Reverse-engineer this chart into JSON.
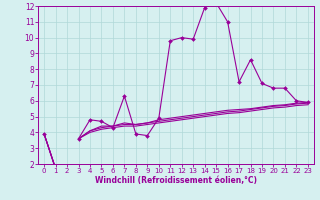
{
  "title": "",
  "xlabel": "Windchill (Refroidissement éolien,°C)",
  "bg_color": "#d6f0f0",
  "line_color": "#990099",
  "grid_color": "#b0d8d8",
  "x_data": [
    0,
    1,
    2,
    3,
    4,
    5,
    6,
    7,
    8,
    9,
    10,
    11,
    12,
    13,
    14,
    15,
    16,
    17,
    18,
    19,
    20,
    21,
    22,
    23
  ],
  "line1": [
    3.9,
    1.7,
    null,
    3.6,
    4.8,
    4.7,
    4.3,
    6.3,
    3.9,
    3.8,
    4.9,
    9.8,
    10.0,
    9.9,
    11.9,
    12.2,
    11.0,
    7.2,
    8.6,
    7.1,
    6.8,
    6.8,
    6.0,
    5.9
  ],
  "line2": [
    3.9,
    1.7,
    null,
    3.6,
    4.1,
    4.4,
    4.4,
    4.6,
    4.5,
    4.6,
    4.8,
    4.9,
    5.0,
    5.1,
    5.2,
    5.3,
    5.4,
    5.45,
    5.5,
    5.6,
    5.7,
    5.75,
    5.85,
    5.9
  ],
  "line3": [
    3.9,
    1.7,
    null,
    3.6,
    4.1,
    4.3,
    4.4,
    4.5,
    4.5,
    4.6,
    4.7,
    4.8,
    4.9,
    5.0,
    5.1,
    5.2,
    5.3,
    5.35,
    5.45,
    5.55,
    5.65,
    5.7,
    5.8,
    5.85
  ],
  "line4": [
    3.9,
    1.7,
    null,
    3.6,
    4.0,
    4.2,
    4.3,
    4.4,
    4.4,
    4.5,
    4.6,
    4.7,
    4.8,
    4.9,
    5.0,
    5.1,
    5.2,
    5.25,
    5.35,
    5.45,
    5.55,
    5.6,
    5.7,
    5.75
  ],
  "ylim": [
    2,
    12
  ],
  "xlim": [
    -0.5,
    23.5
  ],
  "yticks": [
    2,
    3,
    4,
    5,
    6,
    7,
    8,
    9,
    10,
    11,
    12
  ],
  "xticks": [
    0,
    1,
    2,
    3,
    4,
    5,
    6,
    7,
    8,
    9,
    10,
    11,
    12,
    13,
    14,
    15,
    16,
    17,
    18,
    19,
    20,
    21,
    22,
    23
  ]
}
